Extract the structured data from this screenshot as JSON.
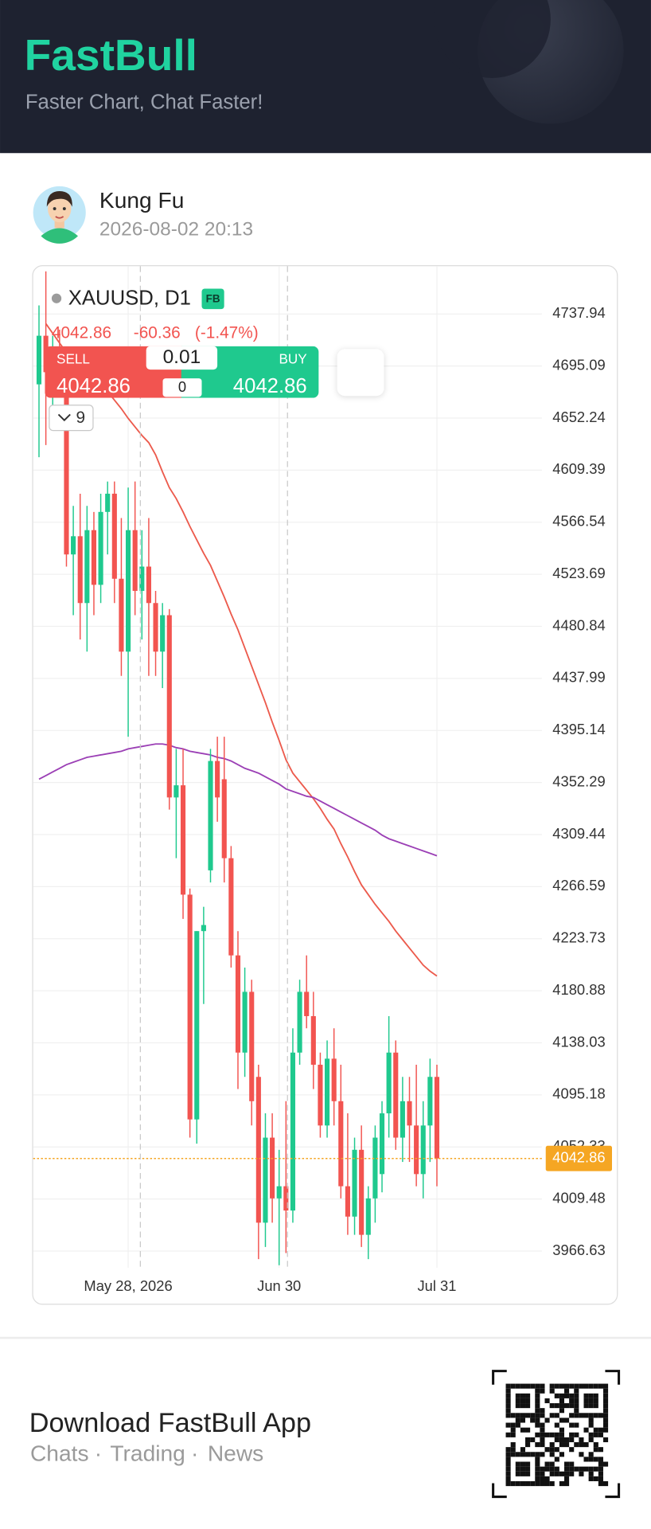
{
  "header": {
    "title": "FastBull",
    "tagline": "Faster Chart, Chat Faster!"
  },
  "post": {
    "author": "Kung Fu",
    "time": "2026-08-02 20:13"
  },
  "chart_data": {
    "type": "candlestick",
    "symbol": "XAUUSD, D1",
    "badge": "FB",
    "quote": {
      "price": "4042.86",
      "change": "-60.36",
      "change_pct": "(-1.47%)"
    },
    "trade": {
      "sell_label": "SELL",
      "sell_price": "4042.86",
      "lot": "0.01",
      "spread": "0",
      "buy_label": "BUY",
      "buy_price": "4042.86"
    },
    "indicator_count": "9",
    "categories": [
      null,
      null,
      null,
      null,
      null,
      null,
      null,
      null,
      null,
      null,
      null,
      null,
      null,
      "May 28, 2026",
      null,
      null,
      null,
      null,
      null,
      null,
      null,
      null,
      null,
      null,
      null,
      null,
      null,
      null,
      null,
      null,
      null,
      null,
      null,
      null,
      null,
      "Jun 30",
      null,
      null,
      null,
      null,
      null,
      null,
      null,
      null,
      null,
      null,
      null,
      null,
      null,
      null,
      null,
      null,
      null,
      null,
      null,
      null,
      null,
      null,
      "Jul 31"
    ],
    "open": [
      4680,
      4720,
      4690,
      4700,
      4680,
      4540,
      4555,
      4500,
      4560,
      4515,
      4575,
      4590,
      4520,
      4460,
      4560,
      4510,
      4530,
      4500,
      4460,
      4490,
      4340,
      4350,
      4260,
      4075,
      4230,
      4280,
      4370,
      4355,
      4290,
      4210,
      4130,
      4180,
      4110,
      3990,
      4060,
      4010,
      4020,
      4000,
      4130,
      4180,
      4160,
      4120,
      4070,
      4125,
      4090,
      4020,
      3995,
      4050,
      3980,
      4010,
      4030,
      4080,
      4130,
      4060,
      4090,
      4070,
      4030,
      4070,
      4110
    ],
    "high": [
      4745,
      4773,
      4720,
      4725,
      4690,
      4580,
      4590,
      4580,
      4575,
      4590,
      4600,
      4600,
      4570,
      4595,
      4600,
      4560,
      4570,
      4510,
      4500,
      4495,
      4380,
      4380,
      4265,
      4230,
      4250,
      4380,
      4390,
      4390,
      4300,
      4230,
      4200,
      4190,
      4120,
      4080,
      4080,
      4050,
      4090,
      4150,
      4190,
      4210,
      4180,
      4130,
      4140,
      4150,
      4120,
      4080,
      4060,
      4070,
      4020,
      4070,
      4090,
      4160,
      4140,
      4110,
      4110,
      4120,
      4090,
      4125,
      4120
    ],
    "low": [
      4620,
      4630,
      4660,
      4670,
      4530,
      4490,
      4470,
      4460,
      4490,
      4500,
      4540,
      4500,
      4440,
      4390,
      4490,
      4470,
      4440,
      4440,
      4430,
      4330,
      4290,
      4240,
      4060,
      4055,
      4170,
      4270,
      4320,
      4270,
      4200,
      4100,
      4110,
      4070,
      3960,
      3970,
      3990,
      3955,
      3965,
      3990,
      4120,
      4150,
      4100,
      4060,
      4060,
      4070,
      4010,
      3980,
      3980,
      3970,
      3960,
      3990,
      4015,
      4060,
      4050,
      4040,
      4040,
      4020,
      4010,
      4040,
      4020
    ],
    "close": [
      4720,
      4690,
      4700,
      4680,
      4540,
      4555,
      4500,
      4560,
      4515,
      4575,
      4590,
      4520,
      4460,
      4560,
      4510,
      4530,
      4500,
      4460,
      4490,
      4340,
      4350,
      4260,
      4075,
      4230,
      4235,
      4370,
      4340,
      4290,
      4210,
      4130,
      4180,
      4090,
      3990,
      4060,
      4010,
      4020,
      4000,
      4130,
      4180,
      4160,
      4120,
      4070,
      4125,
      4090,
      4020,
      3995,
      4050,
      3980,
      4010,
      4060,
      4080,
      4130,
      4060,
      4090,
      4070,
      4030,
      4070,
      4110,
      4042.86
    ],
    "up_color": "#1fc98e",
    "down_color": "#f25450",
    "series": [
      {
        "color": "#ec5a4c",
        "values": [
          null,
          4730,
          4722,
          4714,
          4706,
          4698,
          4691,
          4686,
          4683,
          4680,
          4674,
          4667,
          4660,
          4652,
          4645,
          4638,
          4632,
          4622,
          4608,
          4595,
          4586,
          4575,
          4563,
          4552,
          4541,
          4531,
          4518,
          4505,
          4491,
          4478,
          4463,
          4448,
          4433,
          4418,
          4402,
          4387,
          4371,
          4360,
          4353,
          4346,
          4339,
          4331,
          4322,
          4314,
          4302,
          4291,
          4279,
          4268,
          4260,
          4252,
          4245,
          4238,
          4230,
          4223,
          4216,
          4209,
          4202,
          4197,
          4193
        ]
      },
      {
        "color": "#9b3fb5",
        "values": [
          4355,
          4358,
          4361,
          4364,
          4367,
          4369,
          4371,
          4373,
          4374,
          4375,
          4376,
          4377,
          4378,
          4380,
          4381,
          4382,
          4383,
          4384,
          4384,
          4383,
          4381,
          4380,
          4378,
          4377,
          4376,
          4375,
          4373,
          4372,
          4370,
          4367,
          4364,
          4362,
          4360,
          4357,
          4354,
          4351,
          4347,
          4345,
          4343,
          4341,
          4340,
          4337,
          4334,
          4331,
          4328,
          4325,
          4322,
          4319,
          4316,
          4313,
          4309,
          4306,
          4304,
          4302,
          4300,
          4298,
          4296,
          4294,
          4292
        ]
      }
    ],
    "last_price": 4042.86,
    "last_price_color": "#f5a623",
    "ylim": [
      3952.98,
      4777.23
    ],
    "yticks": [
      4737.94,
      4695.09,
      4652.24,
      4609.39,
      4566.54,
      4523.69,
      4480.84,
      4437.99,
      4395.14,
      4352.29,
      4309.44,
      4266.59,
      4223.73,
      4180.88,
      4138.03,
      4095.18,
      4052.33,
      4009.48,
      3966.63
    ],
    "grid": true
  },
  "footer": {
    "title": "Download FastBull App",
    "links": [
      "Chats",
      "Trading",
      "News"
    ]
  }
}
